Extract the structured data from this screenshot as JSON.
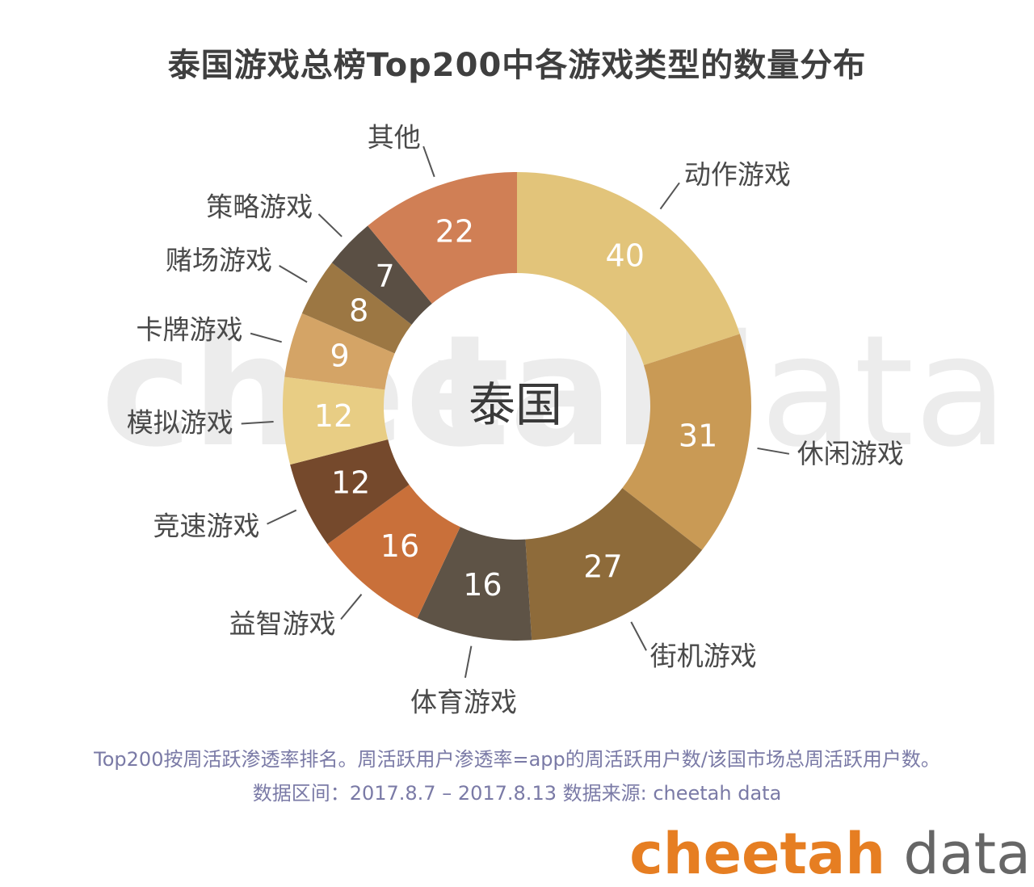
{
  "title": "泰国游戏总榜Top200中各游戏类型的数量分布",
  "chart_data": {
    "type": "pie",
    "donut": true,
    "center_label": "泰国",
    "slices": [
      {
        "label": "动作游戏",
        "value": 40,
        "color": "#E2C47A"
      },
      {
        "label": "休闲游戏",
        "value": 31,
        "color": "#C99A55"
      },
      {
        "label": "街机游戏",
        "value": 27,
        "color": "#8E6B3A"
      },
      {
        "label": "体育游戏",
        "value": 16,
        "color": "#5E5346"
      },
      {
        "label": "益智游戏",
        "value": 16,
        "color": "#C9703A"
      },
      {
        "label": "竞速游戏",
        "value": 12,
        "color": "#75492C"
      },
      {
        "label": "模拟游戏",
        "value": 12,
        "color": "#E8CD84"
      },
      {
        "label": "卡牌游戏",
        "value": 9,
        "color": "#D4A466"
      },
      {
        "label": "赌场游戏",
        "value": 8,
        "color": "#9C7743"
      },
      {
        "label": "策略游戏",
        "value": 7,
        "color": "#5A4F44"
      },
      {
        "label": "其他",
        "value": 22,
        "color": "#D07F55"
      }
    ]
  },
  "notes": {
    "line1": "Top200按周活跃渗透率排名。周活跃用户渗透率=app的周活跃用户数/该国市场总周活跃用户数。",
    "line2": "数据区间：2017.8.7 – 2017.8.13 数据来源: cheetah data"
  },
  "watermark": {
    "brand": "chee",
    "brand2": "tah",
    "suffix": "data"
  },
  "logo": {
    "brand": "cheetah",
    "suffix": "data"
  }
}
